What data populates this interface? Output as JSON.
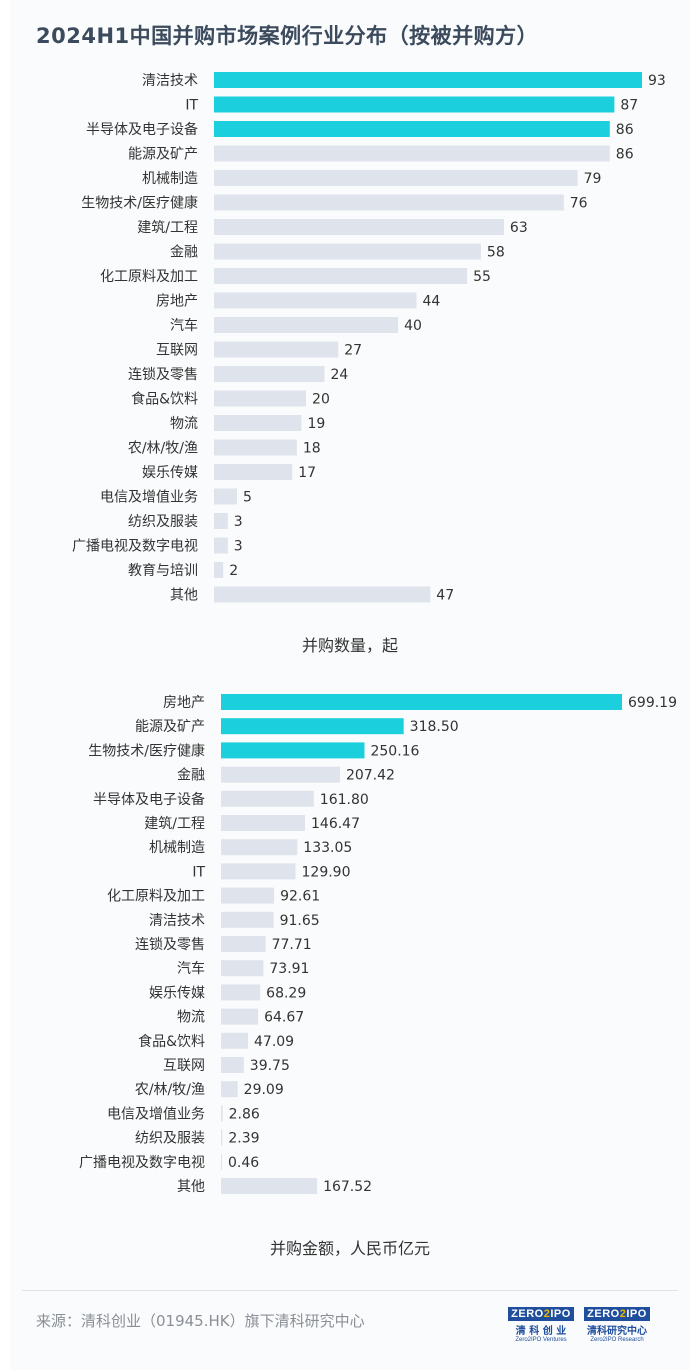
{
  "title": "2024H1中国并购市场案例行业分布（按被并购方）",
  "colors": {
    "highlight": "#1ccfdc",
    "normal": "#dfe3ec",
    "text": "#333333",
    "title": "#3b4a5c"
  },
  "chart_data": [
    {
      "type": "bar",
      "orientation": "horizontal",
      "caption": "并购数量，起",
      "categories": [
        "清洁技术",
        "IT",
        "半导体及电子设备",
        "能源及矿产",
        "机械制造",
        "生物技术/医疗健康",
        "建筑/工程",
        "金融",
        "化工原料及加工",
        "房地产",
        "汽车",
        "互联网",
        "连锁及零售",
        "食品&饮料",
        "物流",
        "农/林/牧/渔",
        "娱乐传媒",
        "电信及增值业务",
        "纺织及服装",
        "广播电视及数字电视",
        "教育与培训",
        "其他"
      ],
      "values": [
        93,
        87,
        86,
        86,
        79,
        76,
        63,
        58,
        55,
        44,
        40,
        27,
        24,
        20,
        19,
        18,
        17,
        5,
        3,
        3,
        2,
        47
      ],
      "value_labels": [
        "93",
        "87",
        "86",
        "86",
        "79",
        "76",
        "63",
        "58",
        "55",
        "44",
        "40",
        "27",
        "24",
        "20",
        "19",
        "18",
        "17",
        "5",
        "3",
        "3",
        "2",
        "47"
      ],
      "highlight_count": 3,
      "xlim": [
        0,
        93
      ]
    },
    {
      "type": "bar",
      "orientation": "horizontal",
      "caption": "并购金额，人民币亿元",
      "categories": [
        "房地产",
        "能源及矿产",
        "生物技术/医疗健康",
        "金融",
        "半导体及电子设备",
        "建筑/工程",
        "机械制造",
        "IT",
        "化工原料及加工",
        "清洁技术",
        "连锁及零售",
        "汽车",
        "娱乐传媒",
        "物流",
        "食品&饮料",
        "互联网",
        "农/林/牧/渔",
        "电信及增值业务",
        "纺织及服装",
        "广播电视及数字电视",
        "其他"
      ],
      "values": [
        699.19,
        318.5,
        250.16,
        207.42,
        161.8,
        146.47,
        133.05,
        129.9,
        92.61,
        91.65,
        77.71,
        73.91,
        68.29,
        64.67,
        47.09,
        39.75,
        29.09,
        2.86,
        2.39,
        0.46,
        167.52
      ],
      "value_labels": [
        "699.19",
        "318.50",
        "250.16",
        "207.42",
        "161.80",
        "146.47",
        "133.05",
        "129.90",
        "92.61",
        "91.65",
        "77.71",
        "73.91",
        "68.29",
        "64.67",
        "47.09",
        "39.75",
        "29.09",
        "2.86",
        "2.39",
        "0.46",
        "167.52"
      ],
      "highlight_count": 3,
      "xlim": [
        0,
        699.19
      ]
    }
  ],
  "footer": {
    "source": "来源：清科创业（01945.HK）旗下清科研究中心",
    "logos": [
      {
        "mark_a": "ZERO",
        "mark_b": "2",
        "mark_c": "IPO",
        "cn": "清 科 创 业",
        "en": "Zero2IPO Ventures"
      },
      {
        "mark_a": "ZERO",
        "mark_b": "2",
        "mark_c": "IPO",
        "cn": "清科研究中心",
        "en": "Zero2IPO Research"
      }
    ]
  }
}
